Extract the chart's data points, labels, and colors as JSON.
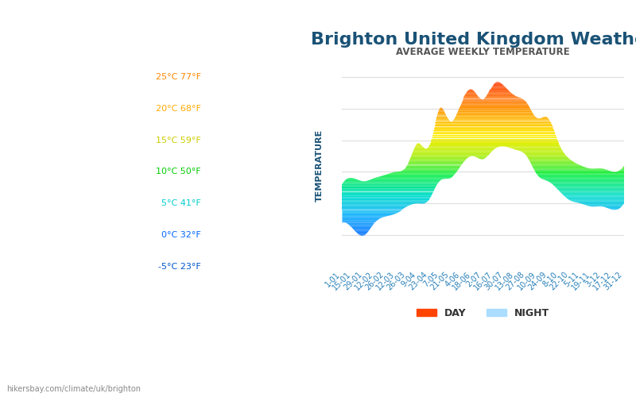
{
  "title": "Brighton United Kingdom Weather",
  "subtitle": "AVERAGE WEEKLY TEMPERATURE",
  "ylabel_celsius_fahrenheit": [
    [
      "25°C 77°F",
      25
    ],
    [
      "20°C 68°F",
      20
    ],
    [
      "15°C 59°F",
      15
    ],
    [
      "10°C 50°F",
      10
    ],
    [
      "5°C 41°F",
      5
    ],
    [
      "0°C 32°F",
      0
    ],
    [
      "-5°C 23°F",
      -5
    ]
  ],
  "ytick_colors": [
    "#ff8800",
    "#ffaa00",
    "#cccc00",
    "#00cc00",
    "#00cccc",
    "#0066ff",
    "#0055cc"
  ],
  "x_labels": [
    "1-01",
    "15-01",
    "29-01",
    "12-02",
    "26-02",
    "12-03",
    "26-03",
    "9-04",
    "23-04",
    "7-05",
    "21-05",
    "4-06",
    "18-06",
    "2-07",
    "16-07",
    "30-07",
    "13-08",
    "27-08",
    "10-09",
    "24-09",
    "8-10",
    "22-10",
    "5-11",
    "19-11",
    "3-12",
    "17-12",
    "31-12"
  ],
  "day_temps": [
    8.0,
    9.0,
    8.5,
    9.0,
    9.5,
    10.0,
    11.0,
    14.5,
    14.0,
    20.0,
    18.0,
    21.0,
    23.0,
    21.5,
    24.0,
    23.5,
    22.0,
    21.0,
    18.5,
    18.5,
    14.5,
    12.0,
    11.0,
    10.5,
    10.5,
    10.0,
    11.0
  ],
  "night_temps": [
    2.0,
    1.0,
    0.0,
    2.0,
    3.0,
    3.5,
    4.5,
    5.0,
    5.5,
    8.5,
    9.0,
    11.0,
    12.5,
    12.0,
    13.5,
    14.0,
    13.5,
    12.5,
    9.5,
    8.5,
    7.0,
    5.5,
    5.0,
    4.5,
    4.5,
    4.0,
    5.0
  ],
  "ylim": [
    -5,
    27
  ],
  "title_color": "#1a5276",
  "subtitle_color": "#555555",
  "axis_label_color": "#1a5276",
  "tick_label_color": "#2980b9",
  "background_color": "#ffffff",
  "grid_color": "#dddddd",
  "watermark": "hikersbay.com/climate/uk/brighton",
  "legend_day_color": "#ff4400",
  "legend_night_color": "#aaddff"
}
